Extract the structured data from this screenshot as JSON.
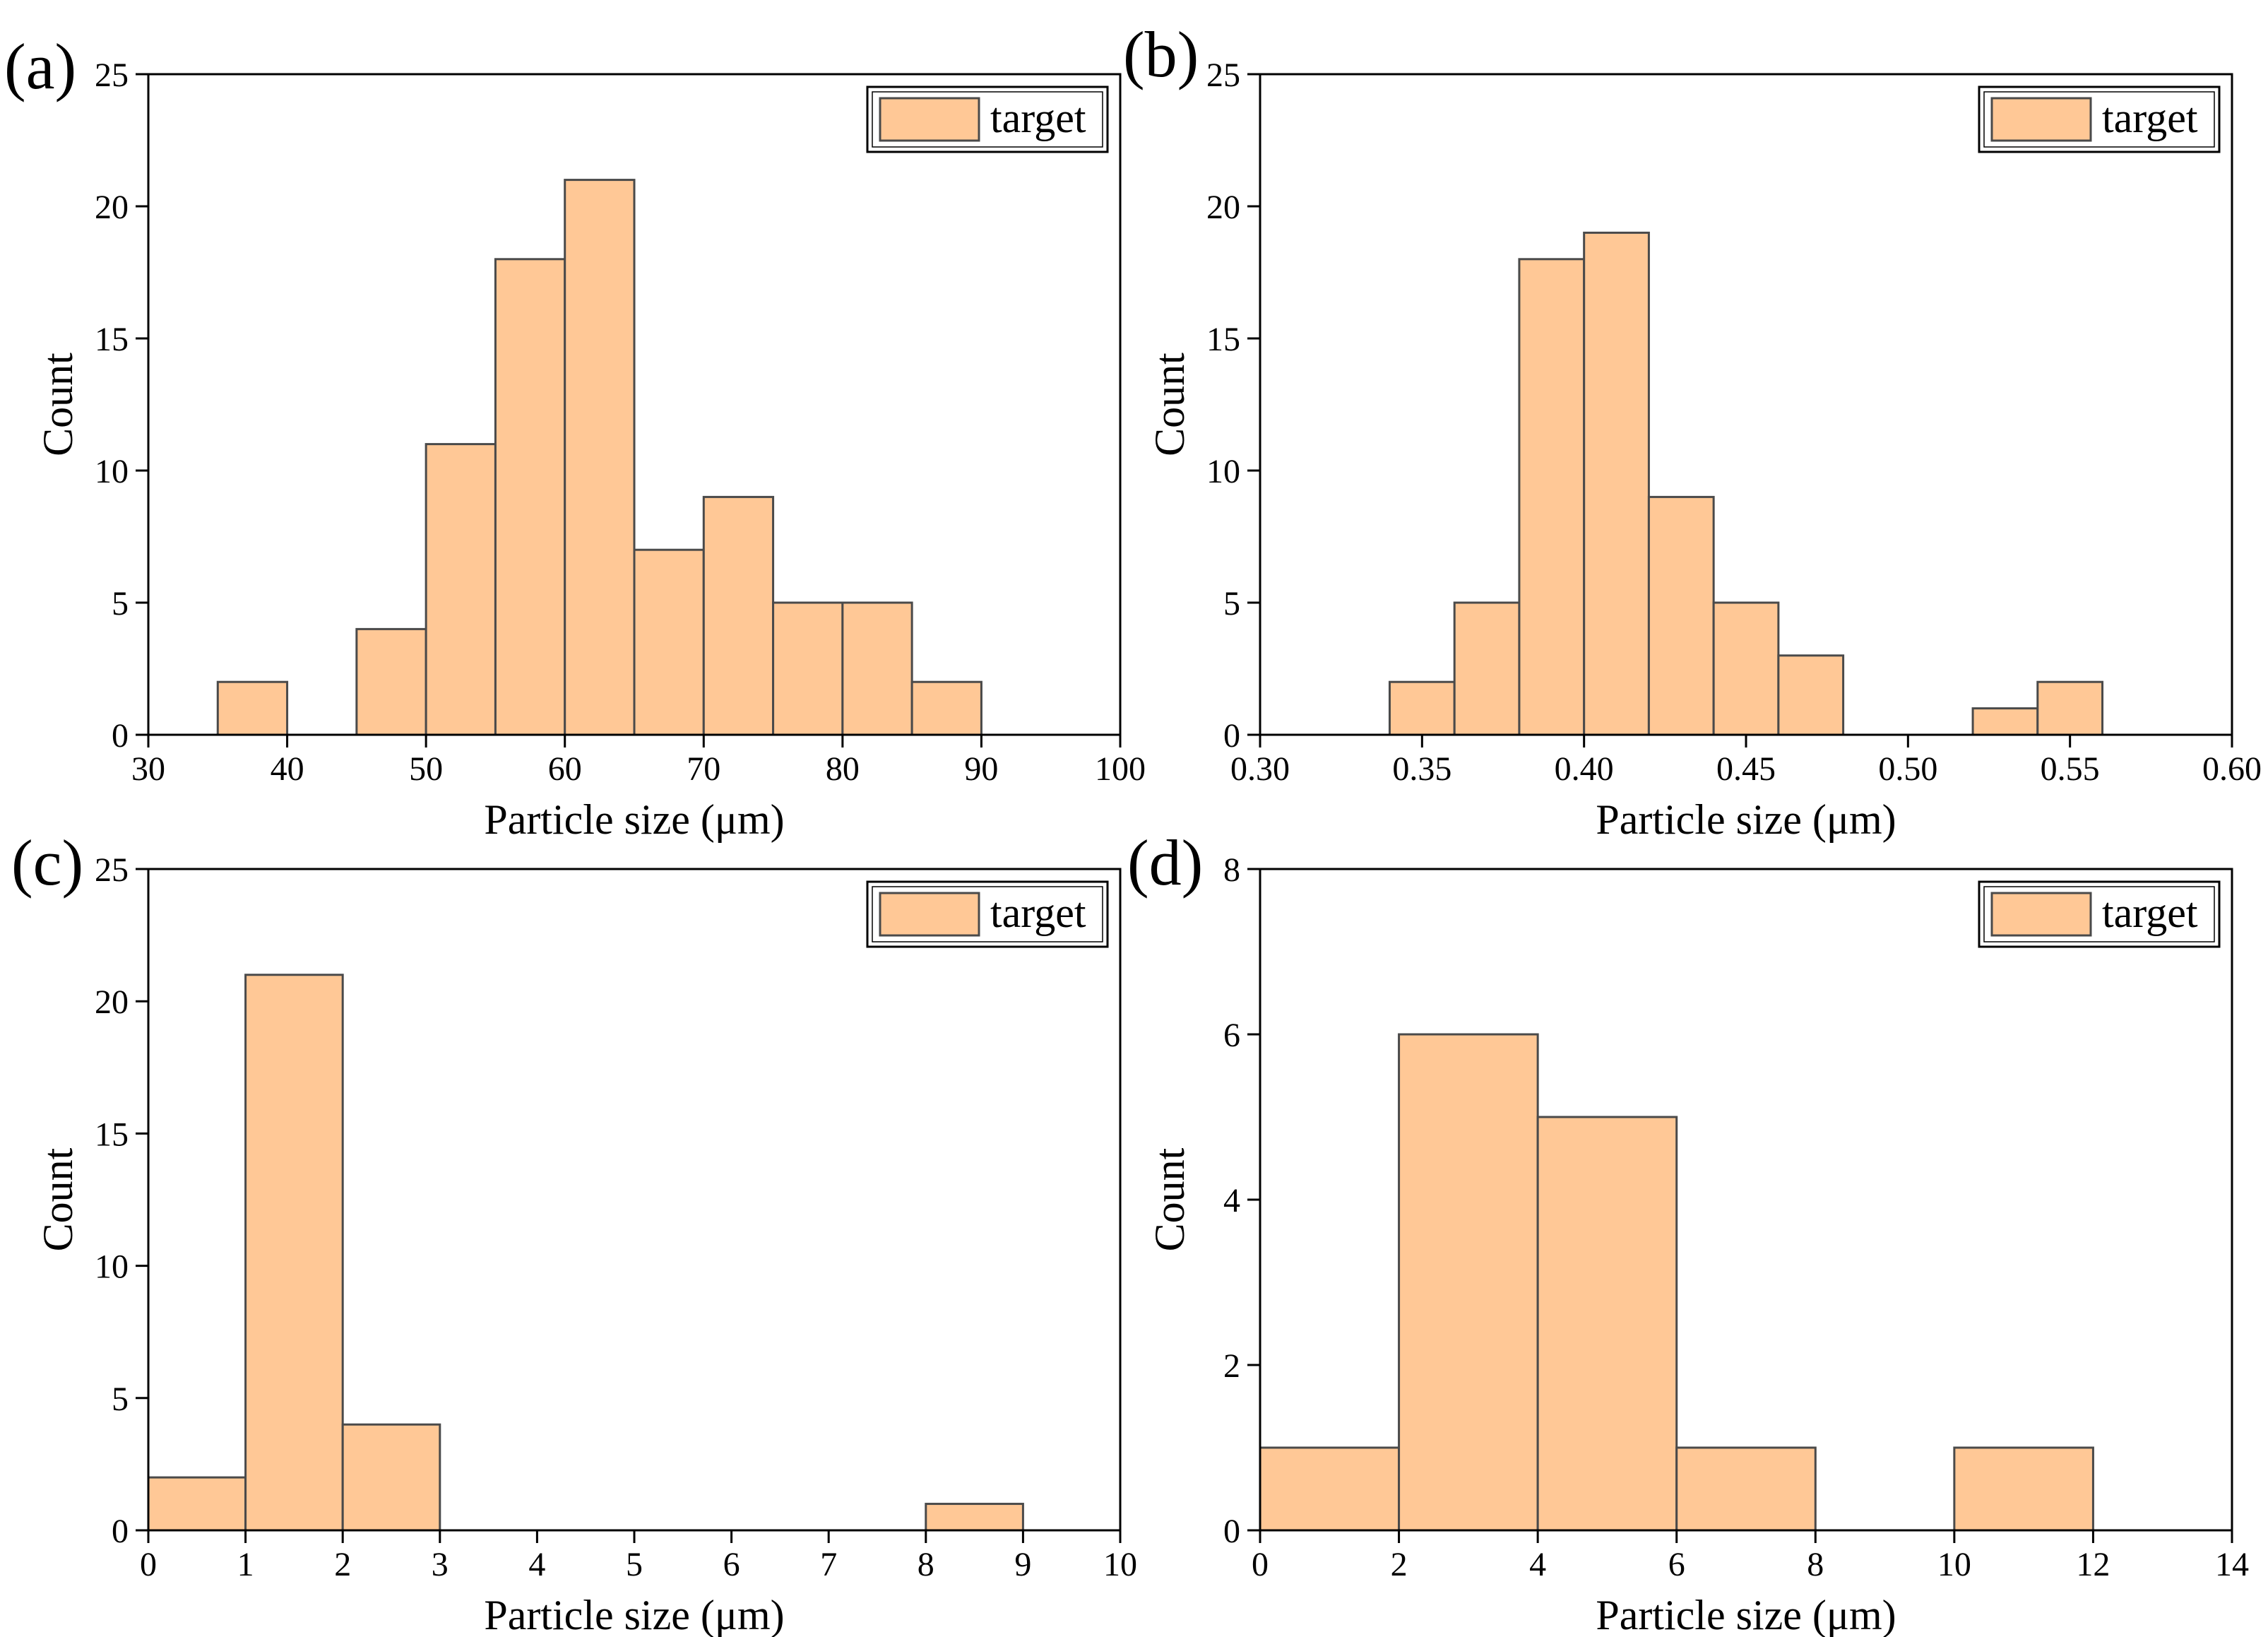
{
  "chart_data": [
    {
      "type": "bar",
      "panel_label": "(a)",
      "xlabel": "Particle size (μm)",
      "ylabel": "Count",
      "xlim": [
        30,
        100
      ],
      "ylim": [
        0,
        25
      ],
      "xticks": [
        30,
        40,
        50,
        60,
        70,
        80,
        90,
        100
      ],
      "yticks": [
        0,
        5,
        10,
        15,
        20,
        25
      ],
      "xtick_labels": [
        "30",
        "40",
        "50",
        "60",
        "70",
        "80",
        "90",
        "100"
      ],
      "ytick_labels": [
        "0",
        "5",
        "10",
        "15",
        "20",
        "25"
      ],
      "legend": {
        "label": "target",
        "position": "top-right"
      },
      "bar_color": "#FFC896",
      "edge_color": "#4A4A4A",
      "bins": [
        {
          "x0": 35,
          "x1": 40,
          "count": 2
        },
        {
          "x0": 45,
          "x1": 50,
          "count": 4
        },
        {
          "x0": 50,
          "x1": 55,
          "count": 11
        },
        {
          "x0": 55,
          "x1": 60,
          "count": 18
        },
        {
          "x0": 60,
          "x1": 65,
          "count": 21
        },
        {
          "x0": 65,
          "x1": 70,
          "count": 7
        },
        {
          "x0": 70,
          "x1": 75,
          "count": 9
        },
        {
          "x0": 75,
          "x1": 80,
          "count": 5
        },
        {
          "x0": 80,
          "x1": 85,
          "count": 5
        },
        {
          "x0": 85,
          "x1": 90,
          "count": 2
        }
      ]
    },
    {
      "type": "bar",
      "panel_label": "(b)",
      "xlabel": "Particle size (μm)",
      "ylabel": "Count",
      "xlim": [
        0.3,
        0.6
      ],
      "ylim": [
        0,
        25
      ],
      "xticks": [
        0.3,
        0.35,
        0.4,
        0.45,
        0.5,
        0.55,
        0.6
      ],
      "yticks": [
        0,
        5,
        10,
        15,
        20,
        25
      ],
      "xtick_labels": [
        "0.30",
        "0.35",
        "0.40",
        "0.45",
        "0.50",
        "0.55",
        "0.60"
      ],
      "ytick_labels": [
        "0",
        "5",
        "10",
        "15",
        "20",
        "25"
      ],
      "legend": {
        "label": "target",
        "position": "top-right"
      },
      "bar_color": "#FFC896",
      "edge_color": "#4A4A4A",
      "bins": [
        {
          "x0": 0.34,
          "x1": 0.36,
          "count": 2
        },
        {
          "x0": 0.36,
          "x1": 0.38,
          "count": 5
        },
        {
          "x0": 0.38,
          "x1": 0.4,
          "count": 18
        },
        {
          "x0": 0.4,
          "x1": 0.42,
          "count": 19
        },
        {
          "x0": 0.42,
          "x1": 0.44,
          "count": 9
        },
        {
          "x0": 0.44,
          "x1": 0.46,
          "count": 5
        },
        {
          "x0": 0.46,
          "x1": 0.48,
          "count": 3
        },
        {
          "x0": 0.52,
          "x1": 0.54,
          "count": 1
        },
        {
          "x0": 0.54,
          "x1": 0.56,
          "count": 2
        }
      ]
    },
    {
      "type": "bar",
      "panel_label": "(c)",
      "xlabel": "Particle size (μm)",
      "ylabel": "Count",
      "xlim": [
        0,
        10
      ],
      "ylim": [
        0,
        25
      ],
      "xticks": [
        0,
        1,
        2,
        3,
        4,
        5,
        6,
        7,
        8,
        9,
        10
      ],
      "yticks": [
        0,
        5,
        10,
        15,
        20,
        25
      ],
      "xtick_labels": [
        "0",
        "1",
        "2",
        "3",
        "4",
        "5",
        "6",
        "7",
        "8",
        "9",
        "10"
      ],
      "ytick_labels": [
        "0",
        "5",
        "10",
        "15",
        "20",
        "25"
      ],
      "legend": {
        "label": "target",
        "position": "top-right"
      },
      "bar_color": "#FFC896",
      "edge_color": "#4A4A4A",
      "bins": [
        {
          "x0": 0,
          "x1": 1,
          "count": 2
        },
        {
          "x0": 1,
          "x1": 2,
          "count": 21
        },
        {
          "x0": 2,
          "x1": 3,
          "count": 4
        },
        {
          "x0": 8,
          "x1": 9,
          "count": 1
        }
      ]
    },
    {
      "type": "bar",
      "panel_label": "(d)",
      "xlabel": "Particle size (μm)",
      "ylabel": "Count",
      "xlim": [
        0,
        14
      ],
      "ylim": [
        0,
        8
      ],
      "xticks": [
        0,
        2,
        4,
        6,
        8,
        10,
        12,
        14
      ],
      "yticks": [
        0,
        2,
        4,
        6,
        8
      ],
      "xtick_labels": [
        "0",
        "2",
        "4",
        "6",
        "8",
        "10",
        "12",
        "14"
      ],
      "ytick_labels": [
        "0",
        "2",
        "4",
        "6",
        "8"
      ],
      "legend": {
        "label": "target",
        "position": "top-right"
      },
      "bar_color": "#FFC896",
      "edge_color": "#4A4A4A",
      "bins": [
        {
          "x0": 0,
          "x1": 2,
          "count": 1
        },
        {
          "x0": 2,
          "x1": 4,
          "count": 6
        },
        {
          "x0": 4,
          "x1": 6,
          "count": 5
        },
        {
          "x0": 6,
          "x1": 8,
          "count": 1
        },
        {
          "x0": 10,
          "x1": 12,
          "count": 1
        }
      ]
    }
  ]
}
